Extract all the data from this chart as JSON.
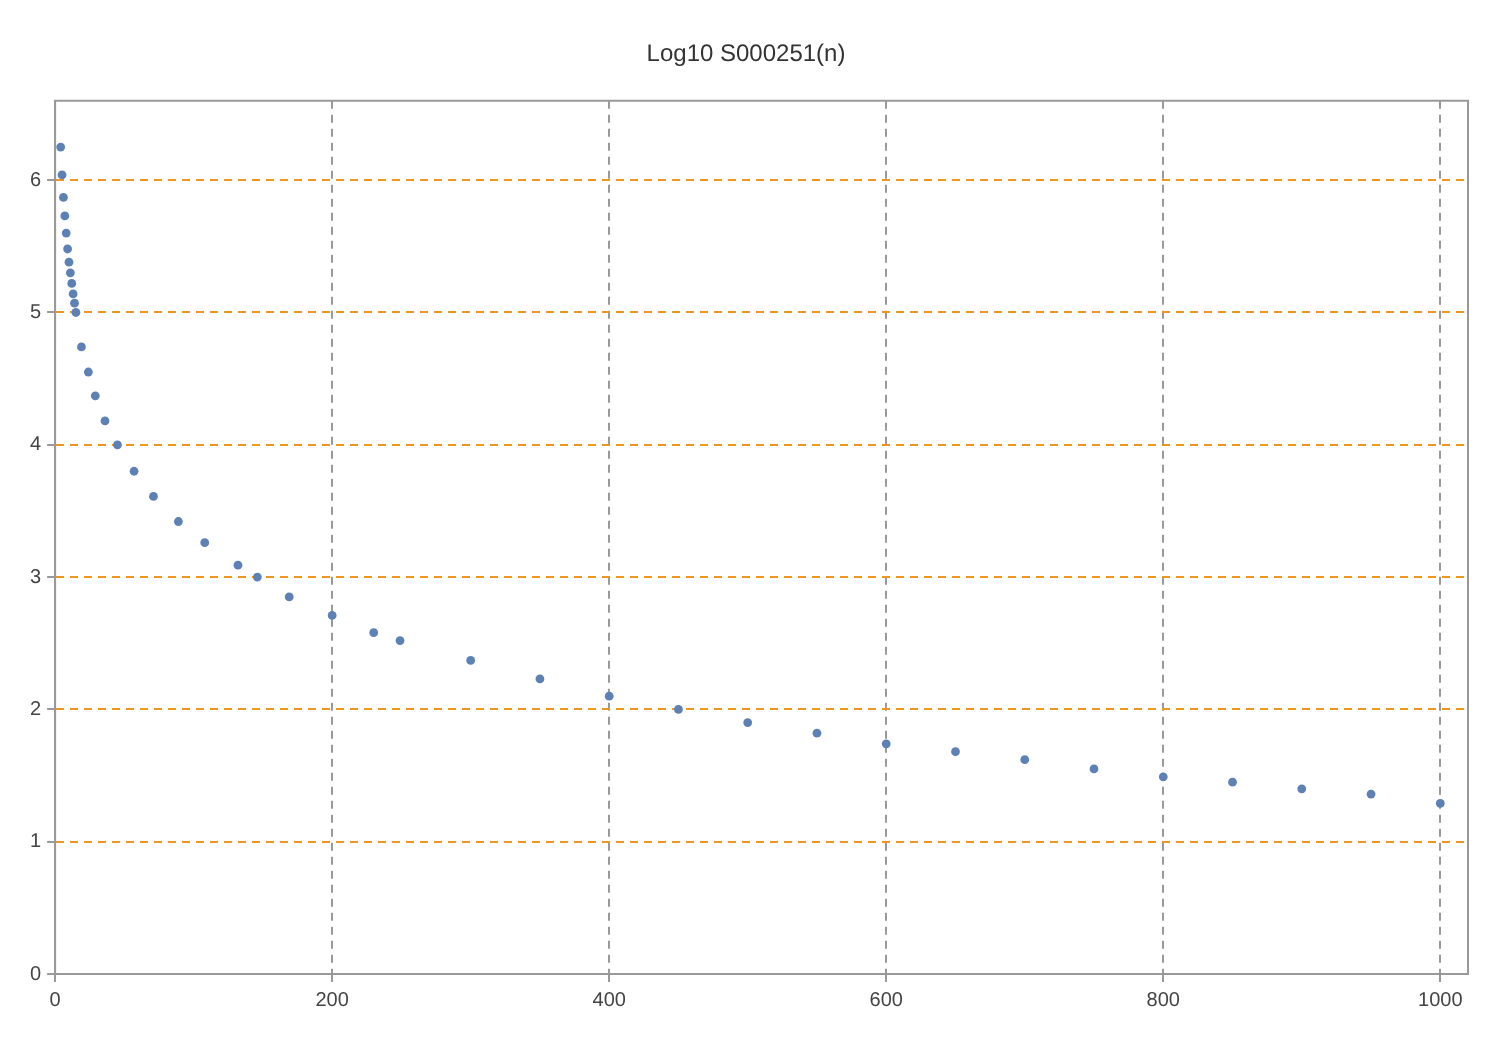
{
  "chart_data": {
    "type": "scatter",
    "title": "Log10 S000251(n)",
    "x": [
      4,
      5,
      6,
      7,
      8,
      9,
      10,
      11,
      12,
      13,
      14,
      15,
      19,
      24,
      29,
      36,
      45,
      57,
      71,
      89,
      108,
      132,
      146,
      169,
      200,
      230,
      249,
      300,
      350,
      400,
      450,
      500,
      550,
      600,
      650,
      700,
      750,
      800,
      850,
      900,
      950,
      1000
    ],
    "series": [
      {
        "color": "#5e81b5",
        "values": [
          6.25,
          6.04,
          5.87,
          5.73,
          5.6,
          5.48,
          5.38,
          5.3,
          5.22,
          5.14,
          5.07,
          5.0,
          4.74,
          4.55,
          4.37,
          4.18,
          4.0,
          3.8,
          3.61,
          3.42,
          3.26,
          3.09,
          3.0,
          2.85,
          2.71,
          2.58,
          2.52,
          2.37,
          2.23,
          2.1,
          2.0,
          1.9,
          1.82,
          1.74,
          1.68,
          1.62,
          1.55,
          1.49,
          1.45,
          1.4,
          1.36,
          1.29
        ]
      }
    ],
    "xlim": [
      0,
      1020
    ],
    "xticks": [
      0,
      200,
      400,
      600,
      800,
      1000
    ],
    "ylim": [
      0,
      6.6
    ],
    "yticks": [
      0,
      1,
      2,
      3,
      4,
      5,
      6
    ],
    "grid": true,
    "marker": "circle",
    "legend": false
  }
}
